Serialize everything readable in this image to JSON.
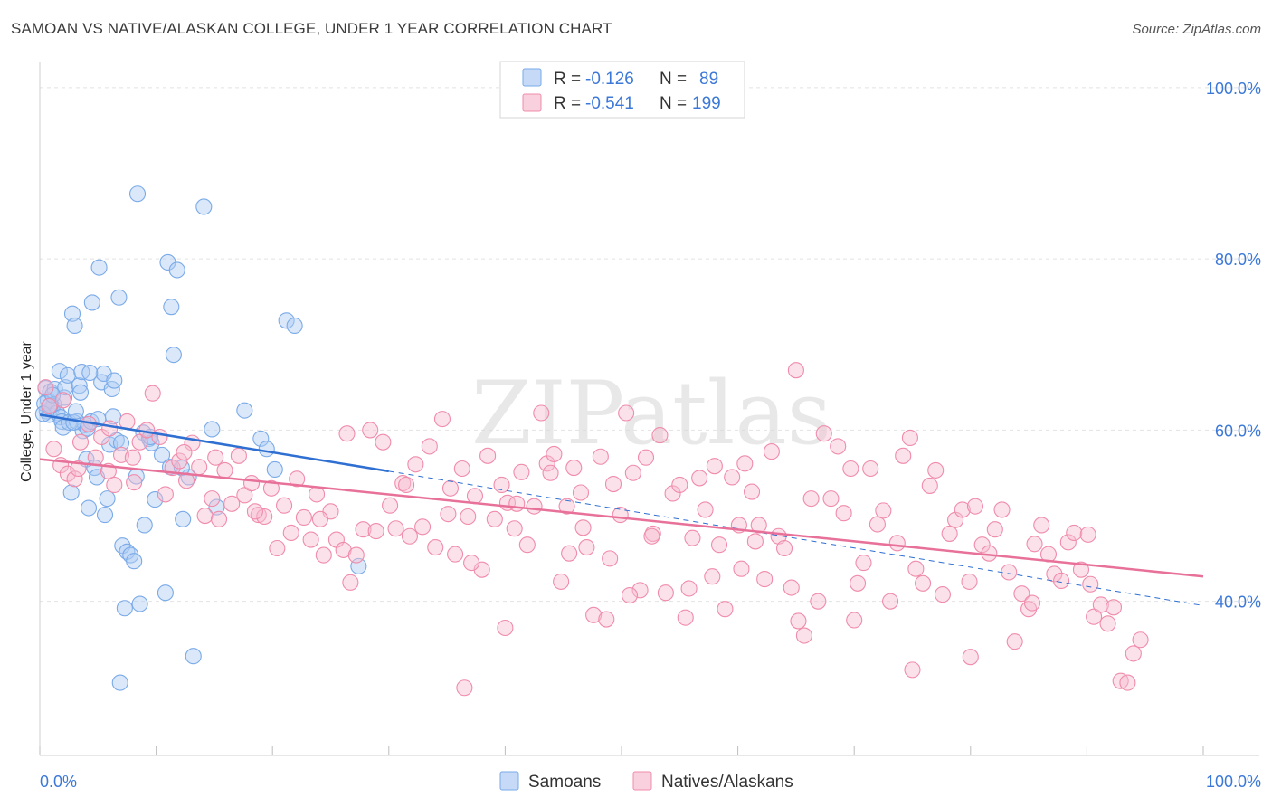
{
  "chart_data": {
    "type": "scatter",
    "title": "SAMOAN VS NATIVE/ALASKAN COLLEGE, UNDER 1 YEAR CORRELATION CHART",
    "source": "Source: ZipAtlas.com",
    "ylabel": "College, Under 1 year",
    "xlabel": "",
    "xlim": [
      0,
      100
    ],
    "ylim": [
      22,
      102
    ],
    "x_tick_labels": [
      "0.0%",
      "100.0%"
    ],
    "y_ticks": [
      40,
      60,
      80,
      100
    ],
    "y_tick_labels": [
      "40.0%",
      "60.0%",
      "80.0%",
      "100.0%"
    ],
    "watermark": "ZIPatlas",
    "legend_stats": [
      {
        "r_label": "R =",
        "r_value": "-0.126",
        "n_label": "N =",
        "n_value": "89"
      },
      {
        "r_label": "R =",
        "r_value": "-0.541",
        "n_label": "N =",
        "n_value": "199"
      }
    ],
    "series": [
      {
        "name": "Samoans",
        "color": "#7aaae8",
        "fill": "#aecbf3",
        "line_color": "#2e6fd1",
        "trend": {
          "x0": 0,
          "y0": 61.8,
          "x1": 30,
          "y1": 55.2,
          "dash_to_x": 100,
          "dash_to_y": 39.5
        },
        "points": [
          [
            0.5,
            64.9
          ],
          [
            0.6,
            62.2
          ],
          [
            0.7,
            63.5
          ],
          [
            0.8,
            61.8
          ],
          [
            0.9,
            64.5
          ],
          [
            1.0,
            62.5
          ],
          [
            1.2,
            63.0
          ],
          [
            1.3,
            64.8
          ],
          [
            1.5,
            62.0
          ],
          [
            1.7,
            66.9
          ],
          [
            1.8,
            61.5
          ],
          [
            1.9,
            61.0
          ],
          [
            2.0,
            60.3
          ],
          [
            2.1,
            63.8
          ],
          [
            2.2,
            65.0
          ],
          [
            2.4,
            66.4
          ],
          [
            2.5,
            60.9
          ],
          [
            2.7,
            52.7
          ],
          [
            2.8,
            73.6
          ],
          [
            3.0,
            72.2
          ],
          [
            3.2,
            61.0
          ],
          [
            3.4,
            65.2
          ],
          [
            3.5,
            64.4
          ],
          [
            3.6,
            66.8
          ],
          [
            3.7,
            59.9
          ],
          [
            3.9,
            60.6
          ],
          [
            4.0,
            56.6
          ],
          [
            4.1,
            60.2
          ],
          [
            4.2,
            50.9
          ],
          [
            4.4,
            61.0
          ],
          [
            4.5,
            74.9
          ],
          [
            4.7,
            55.6
          ],
          [
            4.9,
            54.5
          ],
          [
            5.1,
            79.0
          ],
          [
            5.3,
            65.6
          ],
          [
            5.5,
            66.6
          ],
          [
            5.6,
            50.1
          ],
          [
            5.8,
            52.0
          ],
          [
            6.0,
            58.3
          ],
          [
            6.2,
            64.8
          ],
          [
            6.3,
            61.6
          ],
          [
            6.4,
            65.8
          ],
          [
            6.6,
            58.8
          ],
          [
            6.8,
            75.5
          ],
          [
            7.0,
            58.5
          ],
          [
            7.1,
            46.5
          ],
          [
            7.3,
            39.2
          ],
          [
            7.5,
            45.8
          ],
          [
            7.8,
            45.4
          ],
          [
            8.1,
            44.7
          ],
          [
            8.3,
            54.6
          ],
          [
            8.4,
            87.6
          ],
          [
            8.6,
            39.7
          ],
          [
            8.9,
            59.7
          ],
          [
            9.0,
            48.9
          ],
          [
            9.4,
            59.0
          ],
          [
            9.6,
            58.5
          ],
          [
            9.9,
            51.9
          ],
          [
            10.5,
            57.1
          ],
          [
            10.8,
            41.0
          ],
          [
            11.0,
            79.6
          ],
          [
            11.2,
            55.7
          ],
          [
            11.3,
            74.4
          ],
          [
            11.5,
            68.8
          ],
          [
            11.8,
            78.7
          ],
          [
            12.3,
            49.6
          ],
          [
            12.8,
            54.5
          ],
          [
            13.2,
            33.6
          ],
          [
            14.1,
            86.1
          ],
          [
            15.2,
            51.0
          ],
          [
            17.6,
            62.3
          ],
          [
            19.0,
            59.0
          ],
          [
            19.5,
            57.8
          ],
          [
            20.2,
            55.4
          ],
          [
            21.2,
            72.8
          ],
          [
            21.9,
            72.2
          ],
          [
            27.4,
            44.1
          ],
          [
            0.4,
            63.1
          ],
          [
            0.3,
            61.9
          ],
          [
            0.9,
            62.9
          ],
          [
            1.1,
            64.1
          ],
          [
            2.9,
            60.9
          ],
          [
            3.1,
            62.2
          ],
          [
            4.3,
            66.7
          ],
          [
            5.0,
            61.3
          ],
          [
            6.9,
            30.5
          ],
          [
            9.5,
            59.2
          ],
          [
            12.2,
            55.6
          ],
          [
            14.8,
            60.1
          ]
        ]
      },
      {
        "name": "Natives/Alaskans",
        "color": "#f08cab",
        "fill": "#f7bdd0",
        "line_color": "#e8719a",
        "trend": {
          "x0": 0,
          "y0": 56.6,
          "x1": 100,
          "y1": 42.9
        },
        "points": [
          [
            0.5,
            65.0
          ],
          [
            0.8,
            62.8
          ],
          [
            1.2,
            57.8
          ],
          [
            1.8,
            55.9
          ],
          [
            2.4,
            54.9
          ],
          [
            3.0,
            54.3
          ],
          [
            3.5,
            58.6
          ],
          [
            4.2,
            60.7
          ],
          [
            4.8,
            56.8
          ],
          [
            5.3,
            59.2
          ],
          [
            5.9,
            55.2
          ],
          [
            6.4,
            53.6
          ],
          [
            7.0,
            57.1
          ],
          [
            7.5,
            61.0
          ],
          [
            8.1,
            53.9
          ],
          [
            8.6,
            58.6
          ],
          [
            9.2,
            60.0
          ],
          [
            9.7,
            64.3
          ],
          [
            10.3,
            59.2
          ],
          [
            10.8,
            52.5
          ],
          [
            11.4,
            55.6
          ],
          [
            12.0,
            56.4
          ],
          [
            12.6,
            54.1
          ],
          [
            13.1,
            58.5
          ],
          [
            13.7,
            55.7
          ],
          [
            14.2,
            50.0
          ],
          [
            14.8,
            52.0
          ],
          [
            15.4,
            49.6
          ],
          [
            15.9,
            55.3
          ],
          [
            16.5,
            51.4
          ],
          [
            17.1,
            57.0
          ],
          [
            17.6,
            52.4
          ],
          [
            18.2,
            53.8
          ],
          [
            18.8,
            50.1
          ],
          [
            19.3,
            49.9
          ],
          [
            19.9,
            53.2
          ],
          [
            20.4,
            46.2
          ],
          [
            21.0,
            51.2
          ],
          [
            21.6,
            48.0
          ],
          [
            22.1,
            54.3
          ],
          [
            22.7,
            49.8
          ],
          [
            23.3,
            47.2
          ],
          [
            23.8,
            52.5
          ],
          [
            24.4,
            45.4
          ],
          [
            25.0,
            50.5
          ],
          [
            25.5,
            47.2
          ],
          [
            26.1,
            46.0
          ],
          [
            26.7,
            42.2
          ],
          [
            27.2,
            45.4
          ],
          [
            27.8,
            48.4
          ],
          [
            28.4,
            60.0
          ],
          [
            28.9,
            48.2
          ],
          [
            29.5,
            58.6
          ],
          [
            30.1,
            51.2
          ],
          [
            30.6,
            48.5
          ],
          [
            31.2,
            53.8
          ],
          [
            31.8,
            47.6
          ],
          [
            32.3,
            56.0
          ],
          [
            32.9,
            48.7
          ],
          [
            33.5,
            58.1
          ],
          [
            34.0,
            46.3
          ],
          [
            34.6,
            61.3
          ],
          [
            35.1,
            50.2
          ],
          [
            35.7,
            45.5
          ],
          [
            36.3,
            55.5
          ],
          [
            36.8,
            49.9
          ],
          [
            37.4,
            52.3
          ],
          [
            38.0,
            43.7
          ],
          [
            38.5,
            57.0
          ],
          [
            39.1,
            49.6
          ],
          [
            39.7,
            53.6
          ],
          [
            40.2,
            51.5
          ],
          [
            40.8,
            48.5
          ],
          [
            41.4,
            55.1
          ],
          [
            41.9,
            46.6
          ],
          [
            42.5,
            51.1
          ],
          [
            43.1,
            62.0
          ],
          [
            43.6,
            56.1
          ],
          [
            44.2,
            57.2
          ],
          [
            44.8,
            42.3
          ],
          [
            45.3,
            51.1
          ],
          [
            45.9,
            55.6
          ],
          [
            46.5,
            52.7
          ],
          [
            47.0,
            46.3
          ],
          [
            47.6,
            38.4
          ],
          [
            48.2,
            56.9
          ],
          [
            48.7,
            37.9
          ],
          [
            49.3,
            53.7
          ],
          [
            49.9,
            50.1
          ],
          [
            50.4,
            62.0
          ],
          [
            51.0,
            55.0
          ],
          [
            51.6,
            41.3
          ],
          [
            52.1,
            56.8
          ],
          [
            52.7,
            47.9
          ],
          [
            53.3,
            59.4
          ],
          [
            53.8,
            41.0
          ],
          [
            54.4,
            52.6
          ],
          [
            55.0,
            53.6
          ],
          [
            55.5,
            38.1
          ],
          [
            56.1,
            47.4
          ],
          [
            56.7,
            54.4
          ],
          [
            57.2,
            50.7
          ],
          [
            57.8,
            42.9
          ],
          [
            58.4,
            46.6
          ],
          [
            58.9,
            39.1
          ],
          [
            59.5,
            54.5
          ],
          [
            60.1,
            48.9
          ],
          [
            60.6,
            56.1
          ],
          [
            61.2,
            52.8
          ],
          [
            61.8,
            48.9
          ],
          [
            62.3,
            42.6
          ],
          [
            62.9,
            57.5
          ],
          [
            63.5,
            47.6
          ],
          [
            64.0,
            46.2
          ],
          [
            64.6,
            41.6
          ],
          [
            65.2,
            37.7
          ],
          [
            65.7,
            36.0
          ],
          [
            66.3,
            52.0
          ],
          [
            66.9,
            40.0
          ],
          [
            67.4,
            59.6
          ],
          [
            68.0,
            52.0
          ],
          [
            68.6,
            58.1
          ],
          [
            69.1,
            50.3
          ],
          [
            69.7,
            55.5
          ],
          [
            70.3,
            42.1
          ],
          [
            70.8,
            44.5
          ],
          [
            71.4,
            55.5
          ],
          [
            72.0,
            49.0
          ],
          [
            72.5,
            50.6
          ],
          [
            73.1,
            40.0
          ],
          [
            73.7,
            46.8
          ],
          [
            74.2,
            57.0
          ],
          [
            74.8,
            59.1
          ],
          [
            75.3,
            43.8
          ],
          [
            75.9,
            42.1
          ],
          [
            76.5,
            53.5
          ],
          [
            77.0,
            55.3
          ],
          [
            77.6,
            40.8
          ],
          [
            78.2,
            47.9
          ],
          [
            78.7,
            49.5
          ],
          [
            79.3,
            50.7
          ],
          [
            79.9,
            42.3
          ],
          [
            80.4,
            51.1
          ],
          [
            81.0,
            46.6
          ],
          [
            81.6,
            45.6
          ],
          [
            82.1,
            48.4
          ],
          [
            82.7,
            50.7
          ],
          [
            83.3,
            43.4
          ],
          [
            83.8,
            35.3
          ],
          [
            84.4,
            40.9
          ],
          [
            85.0,
            39.1
          ],
          [
            85.5,
            46.7
          ],
          [
            86.1,
            48.9
          ],
          [
            86.7,
            45.5
          ],
          [
            87.2,
            43.2
          ],
          [
            87.8,
            42.4
          ],
          [
            88.4,
            46.9
          ],
          [
            88.9,
            48.0
          ],
          [
            89.5,
            43.7
          ],
          [
            90.1,
            47.8
          ],
          [
            90.6,
            38.2
          ],
          [
            91.2,
            39.6
          ],
          [
            91.8,
            37.4
          ],
          [
            92.3,
            39.3
          ],
          [
            92.9,
            30.7
          ],
          [
            93.5,
            30.5
          ],
          [
            94.0,
            33.9
          ],
          [
            94.6,
            35.5
          ],
          [
            36.5,
            29.9
          ],
          [
            40.0,
            36.9
          ],
          [
            45.5,
            45.6
          ],
          [
            50.7,
            40.7
          ],
          [
            55.8,
            41.5
          ],
          [
            60.3,
            43.8
          ],
          [
            65.0,
            67.0
          ],
          [
            70.0,
            37.8
          ],
          [
            75.0,
            32.0
          ],
          [
            80.0,
            33.5
          ],
          [
            85.3,
            39.8
          ],
          [
            90.3,
            42.0
          ],
          [
            2.0,
            63.5
          ],
          [
            3.3,
            55.5
          ],
          [
            6.0,
            60.2
          ],
          [
            8.0,
            56.8
          ],
          [
            12.4,
            57.4
          ],
          [
            15.1,
            56.8
          ],
          [
            18.5,
            50.5
          ],
          [
            24.1,
            49.6
          ],
          [
            26.4,
            59.6
          ],
          [
            31.5,
            53.6
          ],
          [
            35.3,
            53.2
          ],
          [
            37.1,
            44.5
          ],
          [
            41.0,
            51.4
          ],
          [
            43.9,
            55.0
          ],
          [
            46.7,
            48.6
          ],
          [
            49.0,
            45.0
          ],
          [
            52.6,
            47.6
          ],
          [
            58.0,
            55.8
          ],
          [
            61.5,
            47.0
          ]
        ]
      }
    ]
  }
}
